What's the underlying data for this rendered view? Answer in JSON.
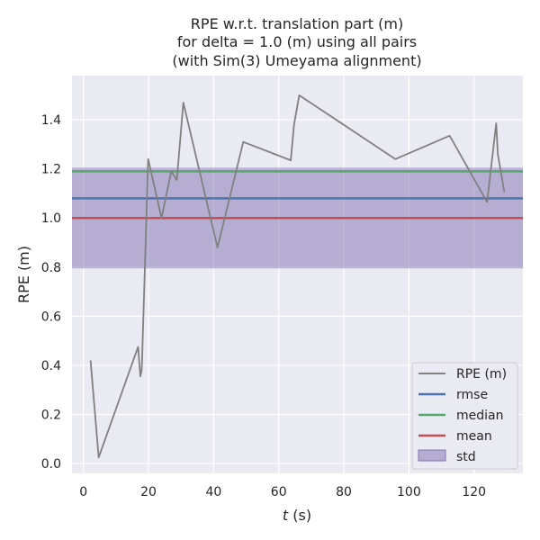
{
  "chart_data": {
    "type": "line",
    "title_lines": [
      "RPE w.r.t. translation part (m)",
      "for delta = 1.0 (m) using all pairs",
      "(with Sim(3) Umeyama alignment)"
    ],
    "xlabel_italic": "t",
    "xlabel_rest": " (s)",
    "ylabel": "RPE (m)",
    "xlim": [
      -3.5,
      135
    ],
    "ylim": [
      -0.04,
      1.58
    ],
    "x_ticks": [
      0,
      20,
      40,
      60,
      80,
      100,
      120
    ],
    "y_ticks": [
      0.0,
      0.2,
      0.4,
      0.6,
      0.8,
      1.0,
      1.2,
      1.4
    ],
    "x_tick_labels": [
      "0",
      "20",
      "40",
      "60",
      "80",
      "100",
      "120"
    ],
    "y_tick_labels": [
      "0.0",
      "0.2",
      "0.4",
      "0.6",
      "0.8",
      "1.0",
      "1.2",
      "1.4"
    ],
    "grid": true,
    "legend_position": "lower-right",
    "colors": {
      "background": "#eaeaf2",
      "grid": "#ffffff",
      "rpe": "#808080",
      "rmse": "#4c72b0",
      "median": "#55a868",
      "mean": "#c44e52",
      "std_fill": "#8172b2"
    },
    "series": [
      {
        "name": "RPE (m)",
        "x": [
          2.2,
          4.7,
          16.8,
          17.5,
          17.9,
          18.0,
          19.9,
          24.0,
          27.0,
          28.7,
          30.7,
          41.2,
          49.1,
          63.7,
          64.7,
          66.3,
          95.8,
          112.5,
          124.0,
          126.8,
          127.3,
          129.3
        ],
        "y": [
          0.42,
          0.025,
          0.475,
          0.355,
          0.38,
          0.41,
          1.24,
          1.0,
          1.19,
          1.155,
          1.47,
          0.88,
          1.31,
          1.235,
          1.38,
          1.5,
          1.24,
          1.335,
          1.065,
          1.385,
          1.26,
          1.105
        ]
      }
    ],
    "stats": {
      "rmse": {
        "name": "rmse",
        "value": 1.08
      },
      "median": {
        "name": "median",
        "value": 1.19
      },
      "mean": {
        "name": "mean",
        "value": 1.0
      },
      "std": {
        "name": "std",
        "lower": 0.795,
        "upper": 1.205
      }
    }
  }
}
